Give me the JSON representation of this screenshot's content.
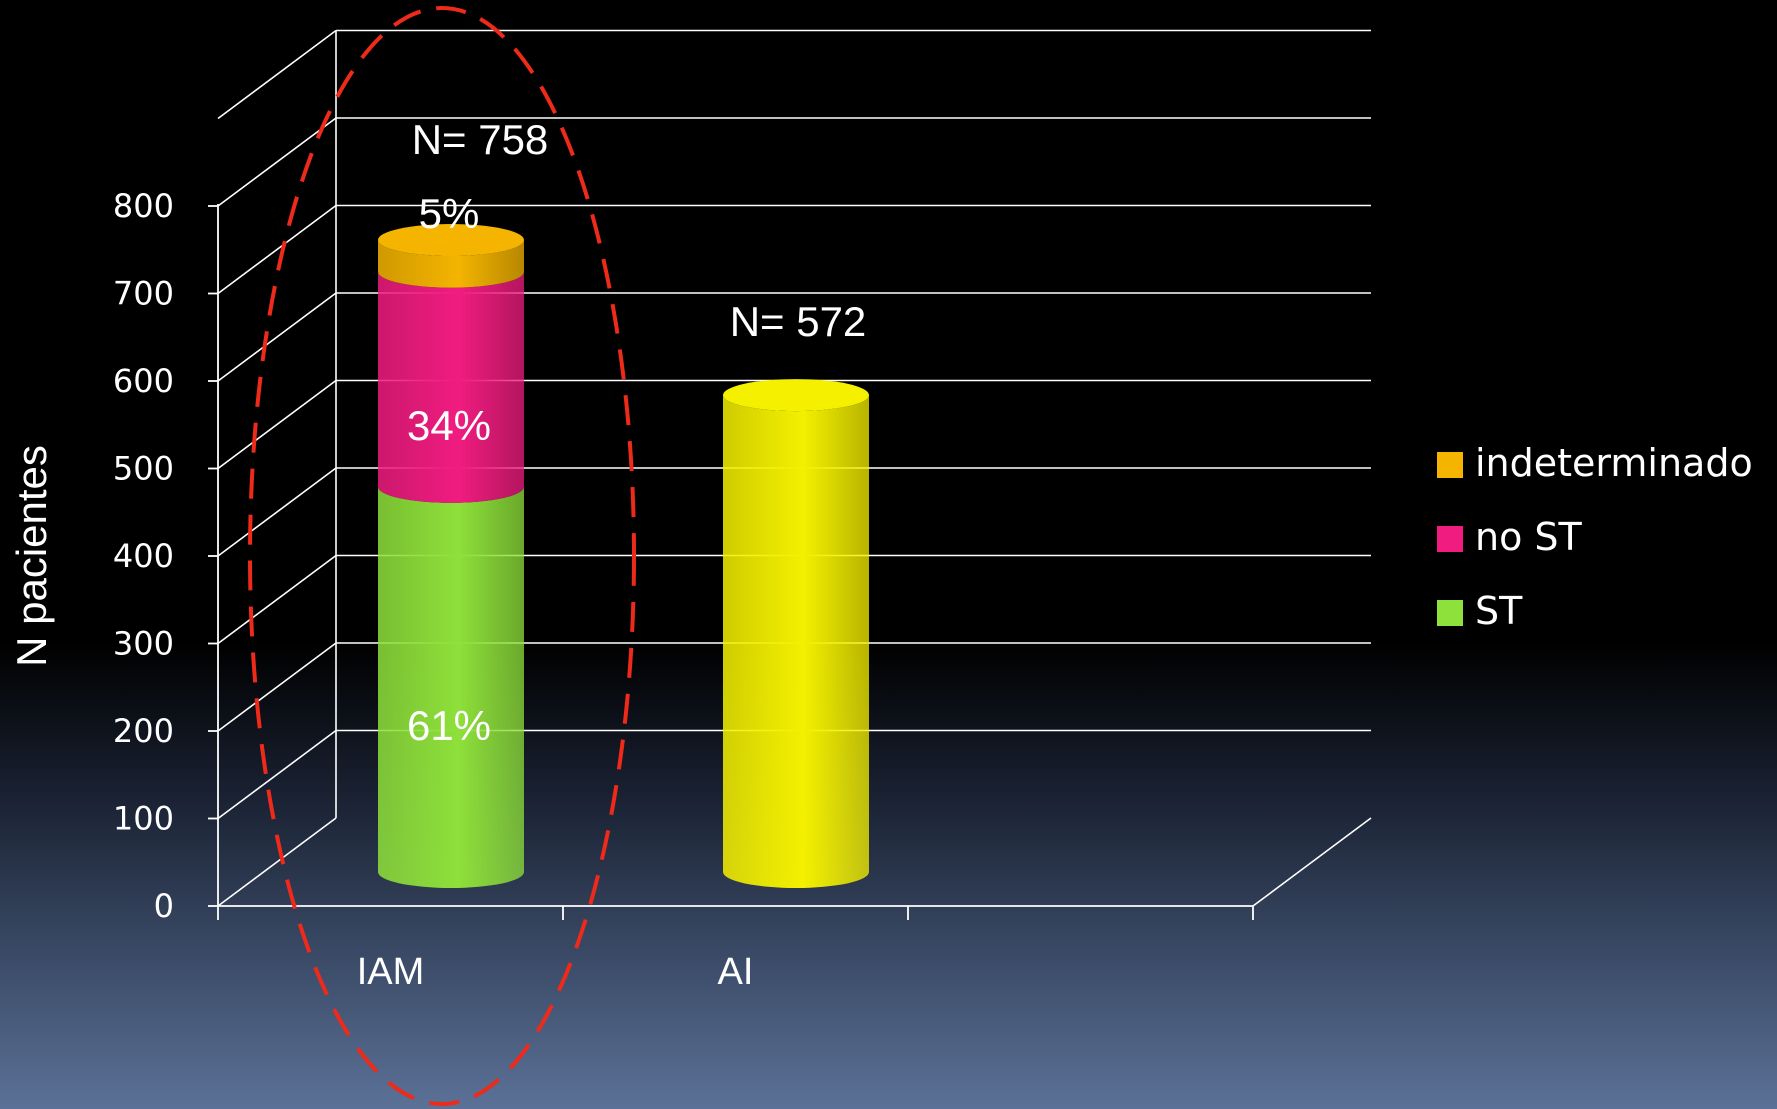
{
  "chart_data": {
    "type": "bar",
    "stacked": true,
    "three_d": true,
    "ylabel": "N pacientes",
    "xlabel": "",
    "ylim": [
      0,
      800
    ],
    "yticks": [
      0,
      100,
      200,
      300,
      400,
      500,
      600,
      700,
      800
    ],
    "categories": [
      "IAM",
      "AI"
    ],
    "totals": [
      758,
      572
    ],
    "total_labels": [
      "N= 758",
      "N= 572"
    ],
    "series": [
      {
        "name": "ST",
        "color": "#8ee03a",
        "values": [
          462,
          null
        ],
        "label": "61%"
      },
      {
        "name": "no ST",
        "color": "#f01c80",
        "values": [
          258,
          null
        ],
        "label": "34%"
      },
      {
        "name": "indeterminado",
        "color": "#f4b400",
        "values": [
          38,
          null
        ],
        "label": "5%"
      },
      {
        "name": "",
        "color": "#f4f000",
        "values": [
          null,
          572
        ],
        "label": ""
      }
    ],
    "legend": {
      "position": "right",
      "items": [
        {
          "name": "indeterminado",
          "color": "#f4b400"
        },
        {
          "name": "no ST",
          "color": "#f01c80"
        },
        {
          "name": "ST",
          "color": "#8ee03a"
        }
      ]
    },
    "grid": true,
    "highlight": {
      "category": "IAM",
      "style": "dashed-ellipse",
      "color": "#ee2a1a"
    }
  }
}
